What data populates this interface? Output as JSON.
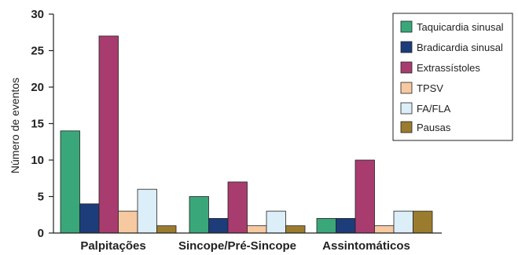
{
  "chart_data": {
    "type": "bar",
    "categories": [
      "Palpitações",
      "Sincope/Pré-Sincope",
      "Assintomáticos"
    ],
    "series": [
      {
        "name": "Taquicardia sinusal",
        "color": "#3aa77a",
        "values": [
          14,
          5,
          2
        ]
      },
      {
        "name": "Bradicardia sinusal",
        "color": "#1c3d7a",
        "values": [
          4,
          2,
          2
        ]
      },
      {
        "name": "Extrassístoles",
        "color": "#a83c6e",
        "values": [
          27,
          7,
          10
        ]
      },
      {
        "name": "TPSV",
        "color": "#f7c9a1",
        "values": [
          3,
          1,
          1
        ]
      },
      {
        "name": "FA/FLA",
        "color": "#dceef7",
        "values": [
          6,
          3,
          3
        ]
      },
      {
        "name": "Pausas",
        "color": "#9b7c2e",
        "values": [
          1,
          1,
          3
        ]
      }
    ],
    "ylabel": "Número de eventos",
    "xlabel": "",
    "ylim": [
      0,
      30
    ],
    "yticks": [
      0,
      5,
      10,
      15,
      20,
      25,
      30
    ],
    "grid": false,
    "legend": "top-right"
  }
}
